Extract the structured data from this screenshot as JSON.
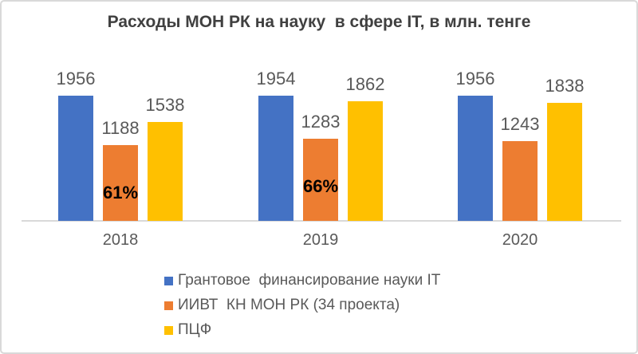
{
  "chart_data": {
    "type": "bar",
    "title": "Расходы МОН РК на науку  в сфере IT, в млн. тенге",
    "categories": [
      "2018",
      "2019",
      "2020"
    ],
    "series": [
      {
        "name": "Грантовое  финансирование науки IT",
        "color": "#4472C4",
        "values": [
          1956,
          1954,
          1956
        ],
        "annotations": [
          null,
          null,
          null
        ]
      },
      {
        "name": "ИИВТ  КН МОН РК (34 проекта)",
        "color": "#ED7D31",
        "values": [
          1188,
          1283,
          1243
        ],
        "annotations": [
          "61%",
          "66%",
          null
        ]
      },
      {
        "name": "ПЦФ",
        "color": "#FFC000",
        "values": [
          1538,
          1862,
          1838
        ],
        "annotations": [
          null,
          null,
          null
        ]
      }
    ],
    "xlabel": "",
    "ylabel": "",
    "ylim": [
      0,
      2000
    ],
    "grid": false,
    "y_axis_visible": false,
    "data_labels": true,
    "legend_position": "bottom-left-stacked",
    "colors": {
      "data_label": "#595959",
      "axis_label": "#595959",
      "annotation": "#000000",
      "title": "#404040",
      "axis_line": "#D9D9D9"
    }
  }
}
